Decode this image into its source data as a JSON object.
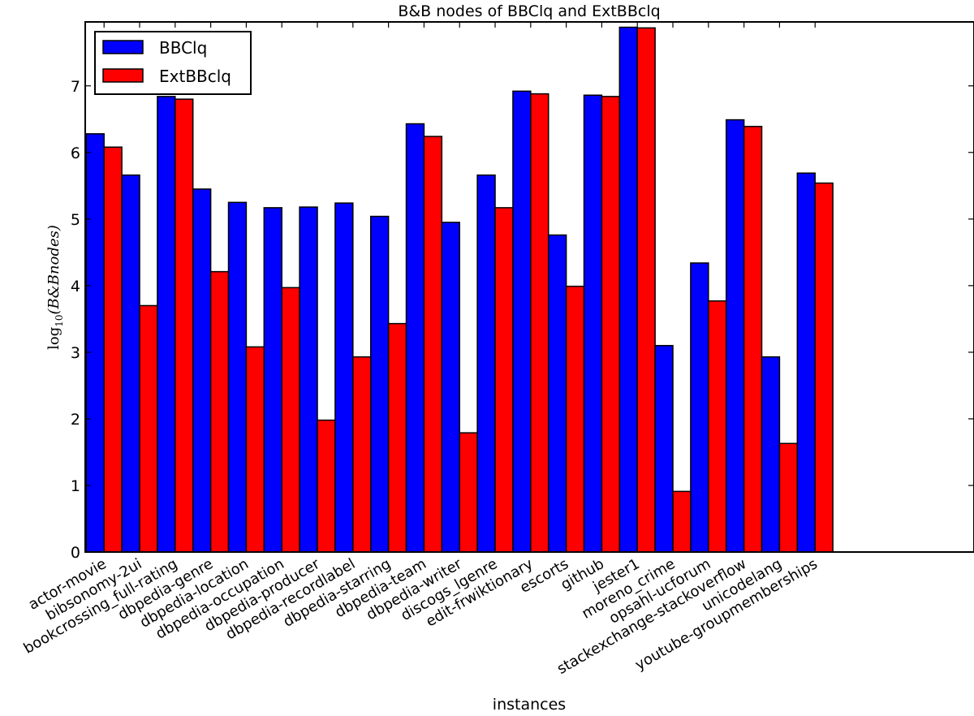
{
  "chart_data": {
    "type": "bar",
    "title": "B&B nodes of BBClq and ExtBBclq",
    "xlabel": "instances",
    "ylabel": "log10(B&Bnodes)",
    "ylabel_parts": {
      "base": "log",
      "sub": "10",
      "arg": "(B&Bnodes)"
    },
    "ylim": [
      0,
      7.96
    ],
    "xlim": [
      -0.53,
      24.47
    ],
    "yticks": [
      0,
      1,
      2,
      3,
      4,
      5,
      6,
      7
    ],
    "grid": false,
    "legend_placement": "top-left",
    "categories": [
      "actor-movie",
      "bibsonomy-2ui",
      "bookcrossing_full-rating",
      "dbpedia-genre",
      "dbpedia-location",
      "dbpedia-occupation",
      "dbpedia-producer",
      "dbpedia-recordlabel",
      "dbpedia-starring",
      "dbpedia-team",
      "dbpedia-writer",
      "discogs_lgenre",
      "edit-frwiktionary",
      "escorts",
      "github",
      "jester1",
      "moreno_crime",
      "opsahl-ucforum",
      "stackexchange-stackoverflow",
      "unicodelang",
      "youtube-groupmemberships"
    ],
    "series": [
      {
        "name": "BBClq",
        "color": "#0000ff",
        "values": [
          6.28,
          5.66,
          6.84,
          5.45,
          5.25,
          5.17,
          5.18,
          5.24,
          5.04,
          6.43,
          4.95,
          5.66,
          6.92,
          4.76,
          6.86,
          7.88,
          3.1,
          4.34,
          6.49,
          2.93,
          5.69
        ]
      },
      {
        "name": "ExtBBclq",
        "color": "#ff0000",
        "values": [
          6.08,
          3.7,
          6.8,
          4.21,
          3.08,
          3.97,
          1.98,
          2.93,
          3.43,
          6.24,
          1.79,
          5.17,
          6.88,
          3.99,
          6.84,
          7.87,
          0.91,
          3.77,
          6.39,
          1.63,
          5.54
        ]
      }
    ]
  }
}
